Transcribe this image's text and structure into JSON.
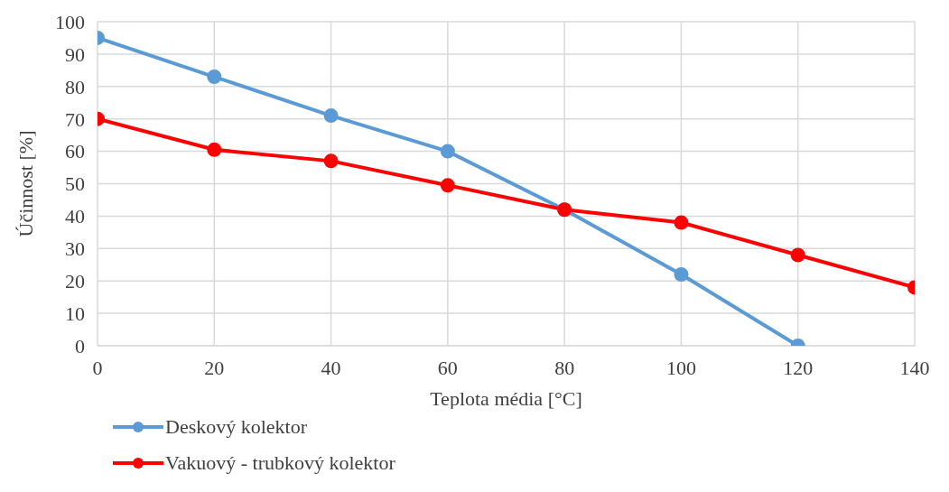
{
  "chart_data": {
    "type": "line",
    "xlabel": "Teplota média [°C]",
    "ylabel": "Účinnost [%]",
    "xlim": [
      0,
      140
    ],
    "xticks": [
      0,
      20,
      40,
      60,
      80,
      100,
      120,
      140
    ],
    "ylim": [
      0,
      100
    ],
    "yticks": [
      0,
      10,
      20,
      30,
      40,
      50,
      60,
      70,
      80,
      90,
      100
    ],
    "grid": true,
    "legend": "bottom",
    "marker": "circle",
    "line_style": "solid",
    "series": [
      {
        "name": "Deskový kolektor",
        "color": "#5b9bd5",
        "x": [
          0,
          20,
          40,
          60,
          80,
          100,
          120
        ],
        "values": [
          95,
          83,
          71,
          60,
          42,
          22,
          0
        ]
      },
      {
        "name": "Vakuový - trubkový kolektor",
        "color": "#ff0000",
        "x": [
          0,
          20,
          40,
          60,
          80,
          100,
          120,
          140
        ],
        "values": [
          70,
          60.5,
          57,
          49.5,
          42,
          38,
          28,
          18
        ]
      }
    ]
  }
}
